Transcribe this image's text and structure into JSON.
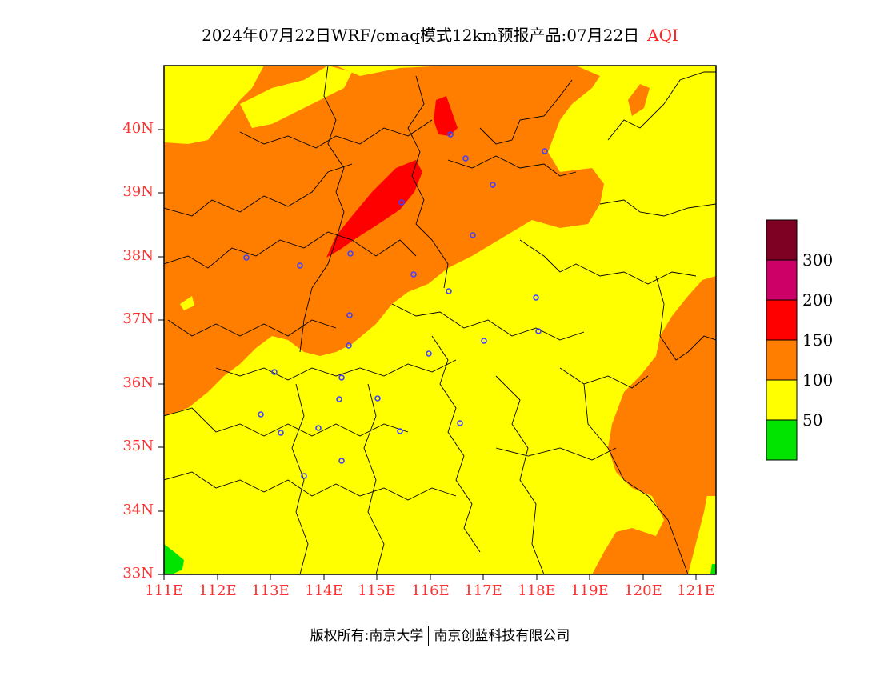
{
  "title": {
    "main": "2024年07月22日WRF/cmaq模式12km预报产品:07月22日",
    "variable": "AQI",
    "variable_color": "#ff2020"
  },
  "map": {
    "region": {
      "lon_min": 111,
      "lon_max": 121.4,
      "lat_min": 33,
      "lat_max": 41
    },
    "lat_labels": [
      "33N",
      "34N",
      "35N",
      "36N",
      "37N",
      "38N",
      "39N",
      "40N"
    ],
    "lon_labels": [
      "111E",
      "112E",
      "113E",
      "114E",
      "115E",
      "116E",
      "117E",
      "118E",
      "119E",
      "120E",
      "121E"
    ],
    "label_color": "#ff3030",
    "fill_levels": [
      {
        "range": "0-50",
        "color": "#00e400"
      },
      {
        "range": "50-100",
        "color": "#ffff00"
      },
      {
        "range": "100-150",
        "color": "#ff7e00"
      },
      {
        "range": "150-200",
        "color": "#ff0000"
      },
      {
        "range": "200-300",
        "color": "#cc0066"
      },
      {
        "range": ">300",
        "color": "#7e0023"
      }
    ],
    "station_marker_color": "#4040ff"
  },
  "colorbar": {
    "labels": [
      "50",
      "100",
      "150",
      "200",
      "300"
    ],
    "colors": [
      "#00e400",
      "#ffff00",
      "#ff7e00",
      "#ff0000",
      "#cc0066",
      "#7e0023"
    ]
  },
  "footer": {
    "copyright": "版权所有:南京大学",
    "company": "南京创蓝科技有限公司"
  }
}
